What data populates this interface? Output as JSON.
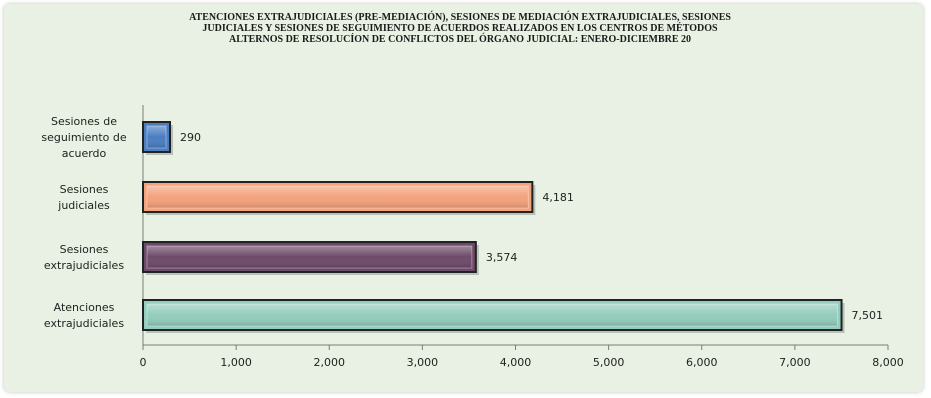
{
  "chart_data": {
    "type": "bar",
    "orientation": "horizontal",
    "title": [
      "ATENCIONES  EXTRAJUDICIALES  (PRE-MEDIACIÓN), SESIONES DE MEDIACIÓN EXTRAJUDICIALES,  SESIONES",
      "JUDICIALES Y SESIONES DE SEGUIMIENTO DE ACUERDOS  REALIZADOS  EN LOS CENTROS DE MÉTODOS",
      "ALTERNOS  DE RESOLUCÍON DE CONFLICTOS DEL ÓRGANO JUDICIAL: ENERO-DICIEMBRE 20"
    ],
    "categories": [
      [
        "Sesiones de",
        "seguimiento de",
        "acuerdo"
      ],
      [
        "Sesiones",
        "judiciales"
      ],
      [
        "Sesiones",
        "extrajudiciales"
      ],
      [
        "Atenciones",
        "extrajudiciales"
      ]
    ],
    "values": [
      290,
      4181,
      3574,
      7501
    ],
    "value_labels": [
      "290",
      "4,181",
      "3,574",
      "7,501"
    ],
    "colors": [
      "#4a7ec0",
      "#f4a27c",
      "#6e4a6a",
      "#93cdbd"
    ],
    "xlim": [
      0,
      8000
    ],
    "x_ticks": [
      0,
      1000,
      2000,
      3000,
      4000,
      5000,
      6000,
      7000,
      8000
    ],
    "x_tick_labels": [
      "0",
      "1,000",
      "2,000",
      "3,000",
      "4,000",
      "5,000",
      "6,000",
      "7,000",
      "8,000"
    ],
    "grid": false,
    "legend": "none"
  }
}
